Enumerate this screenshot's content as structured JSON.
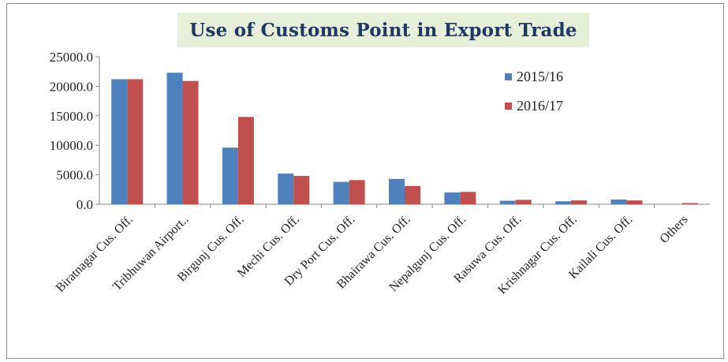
{
  "chart_data": {
    "type": "bar",
    "title": "Use of Customs Point in Export Trade",
    "xlabel": "",
    "ylabel": "",
    "ylim": [
      0,
      25000
    ],
    "yticks": [
      "0.0",
      "5000.0",
      "10000.0",
      "15000.0",
      "20000.0",
      "25000.0"
    ],
    "grid": false,
    "legend_position": "top-right",
    "categories": [
      "Biratnagar Cus. Off.",
      "Tribhuwan Airport..",
      "Birgunj Cus. Off.",
      "Mechi Cus. Off.",
      "Dry Port Cus. Off.",
      "Bhairawa Cus. Off.",
      "Nepalgunj Cus. Off.",
      "Rasuwa Cus. Off.",
      "Krishnagar Cus. Off.",
      "Kailali Cus. Off.",
      "Others"
    ],
    "series": [
      {
        "name": "2015/16",
        "color": "#4f81bd",
        "values": [
          21200,
          22300,
          9600,
          5200,
          3800,
          4300,
          2000,
          600,
          500,
          800,
          0
        ]
      },
      {
        "name": "2016/17",
        "color": "#c0504d",
        "values": [
          21200,
          20900,
          14800,
          4800,
          4100,
          3100,
          2100,
          750,
          650,
          650,
          200
        ]
      }
    ]
  }
}
